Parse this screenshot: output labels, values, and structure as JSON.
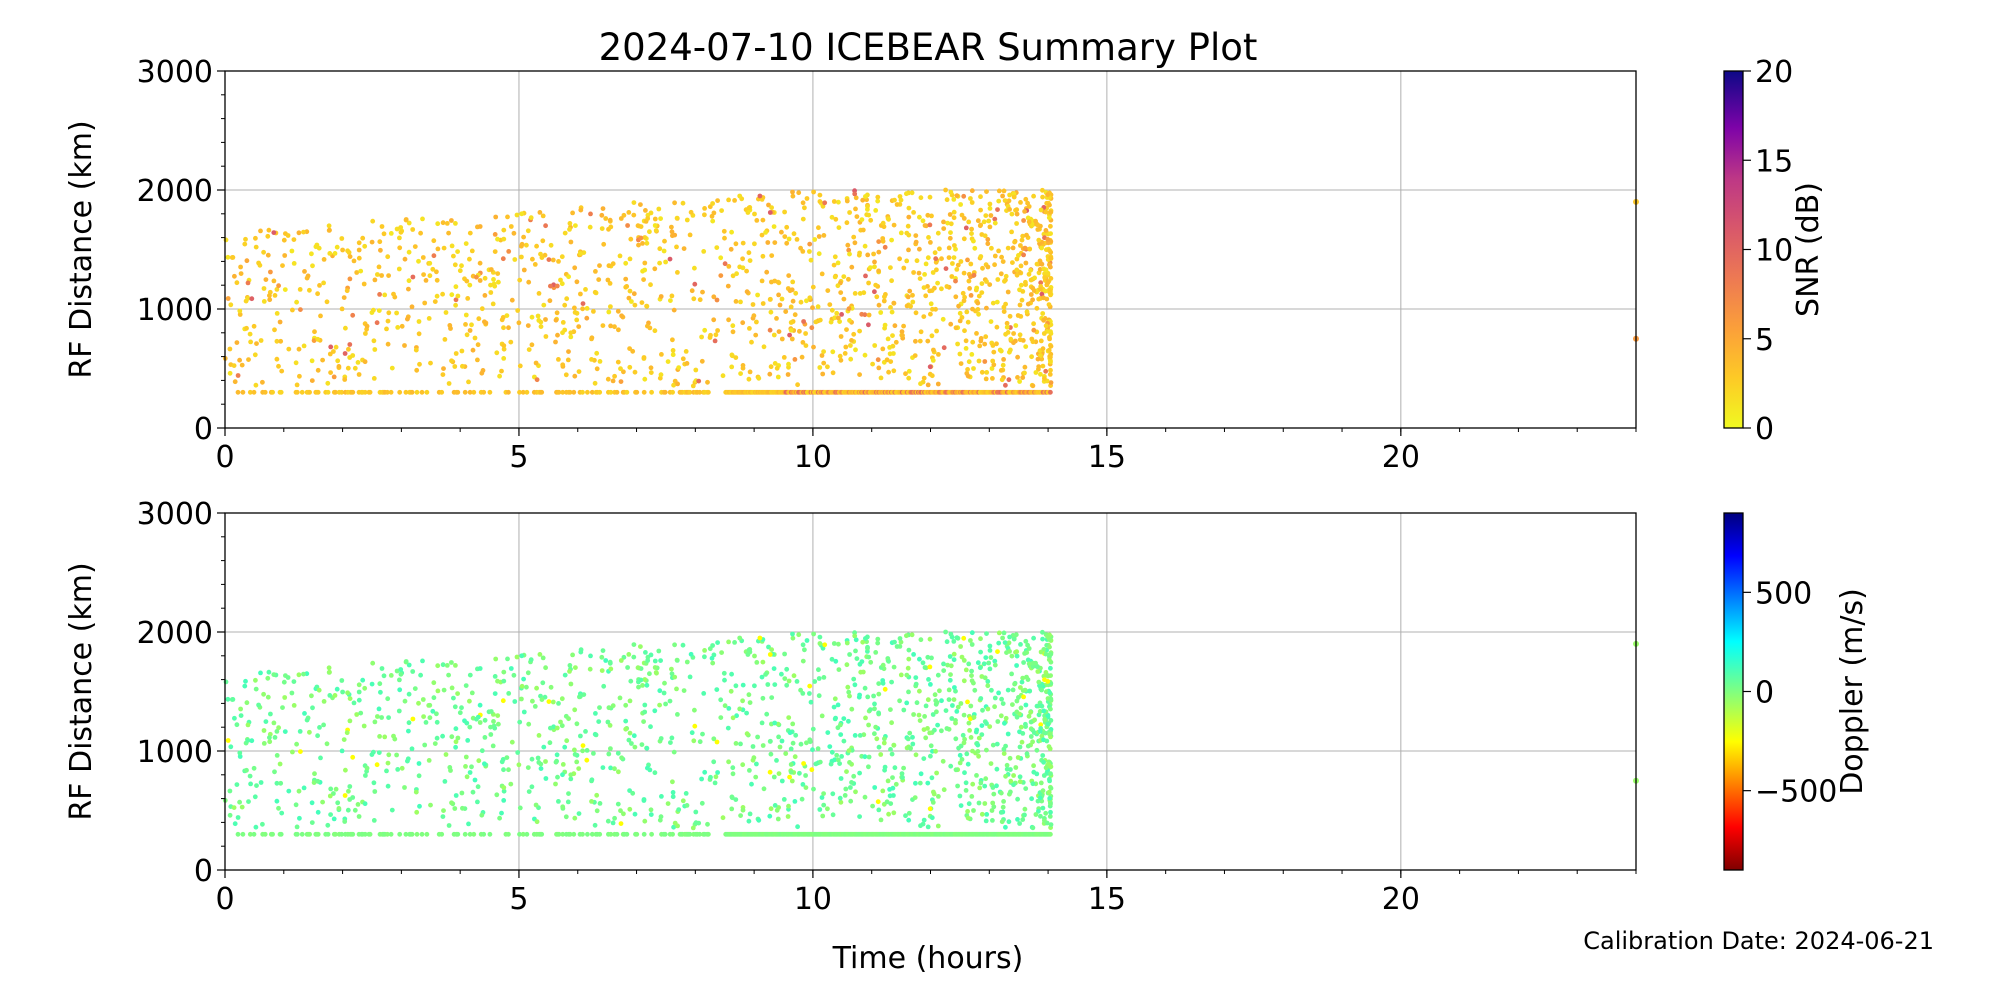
{
  "title": "2024-07-10 ICEBEAR Summary Plot",
  "calibration": "Calibration Date: 2024-06-21",
  "chart_data": [
    {
      "type": "scatter",
      "xlabel": "Time (hours)",
      "ylabel": "RF Distance (km)",
      "xlim": [
        0,
        24
      ],
      "ylim": [
        0,
        3000
      ],
      "x_ticks": [
        "0",
        "5",
        "10",
        "15",
        "20"
      ],
      "y_ticks": [
        "0",
        "1000",
        "2000",
        "3000"
      ],
      "grid": true,
      "color_variable": "SNR",
      "colorbar": {
        "label": "SNR (dB)",
        "range": [
          0,
          20
        ],
        "ticks": [
          "0",
          "5",
          "10",
          "15",
          "20"
        ],
        "colormap": "plasma_r"
      },
      "isolated_points": [
        {
          "x": 24,
          "y": 1900,
          "snr": 3
        },
        {
          "x": 24,
          "y": 750,
          "snr": 6
        }
      ],
      "ground_band": {
        "y": 300,
        "x_start": 0.2,
        "x_end": 14.05,
        "dense_from": 8.5
      },
      "scatter_extent": {
        "x_start": 0,
        "x_end": 14.05,
        "y_min": 350,
        "y_max": 2000
      }
    },
    {
      "type": "scatter",
      "xlabel": "Time (hours)",
      "ylabel": "RF Distance (km)",
      "xlim": [
        0,
        24
      ],
      "ylim": [
        0,
        3000
      ],
      "x_ticks": [
        "0",
        "5",
        "10",
        "15",
        "20"
      ],
      "y_ticks": [
        "0",
        "1000",
        "2000",
        "3000"
      ],
      "grid": true,
      "color_variable": "Doppler",
      "colorbar": {
        "label": "Doppler (m/s)",
        "range": [
          -900,
          900
        ],
        "ticks": [
          "−500",
          "0",
          "500"
        ],
        "tick_values": [
          -500,
          0,
          500
        ],
        "colormap": "jet_r"
      },
      "isolated_points": [
        {
          "x": 24,
          "y": 1900,
          "doppler": -50
        },
        {
          "x": 24,
          "y": 750,
          "doppler": -50
        }
      ],
      "ground_band": {
        "y": 300,
        "x_start": 0.2,
        "x_end": 14.05,
        "dense_from": 8.5
      },
      "scatter_extent": {
        "x_start": 0,
        "x_end": 14.05,
        "y_min": 350,
        "y_max": 2000
      }
    }
  ]
}
